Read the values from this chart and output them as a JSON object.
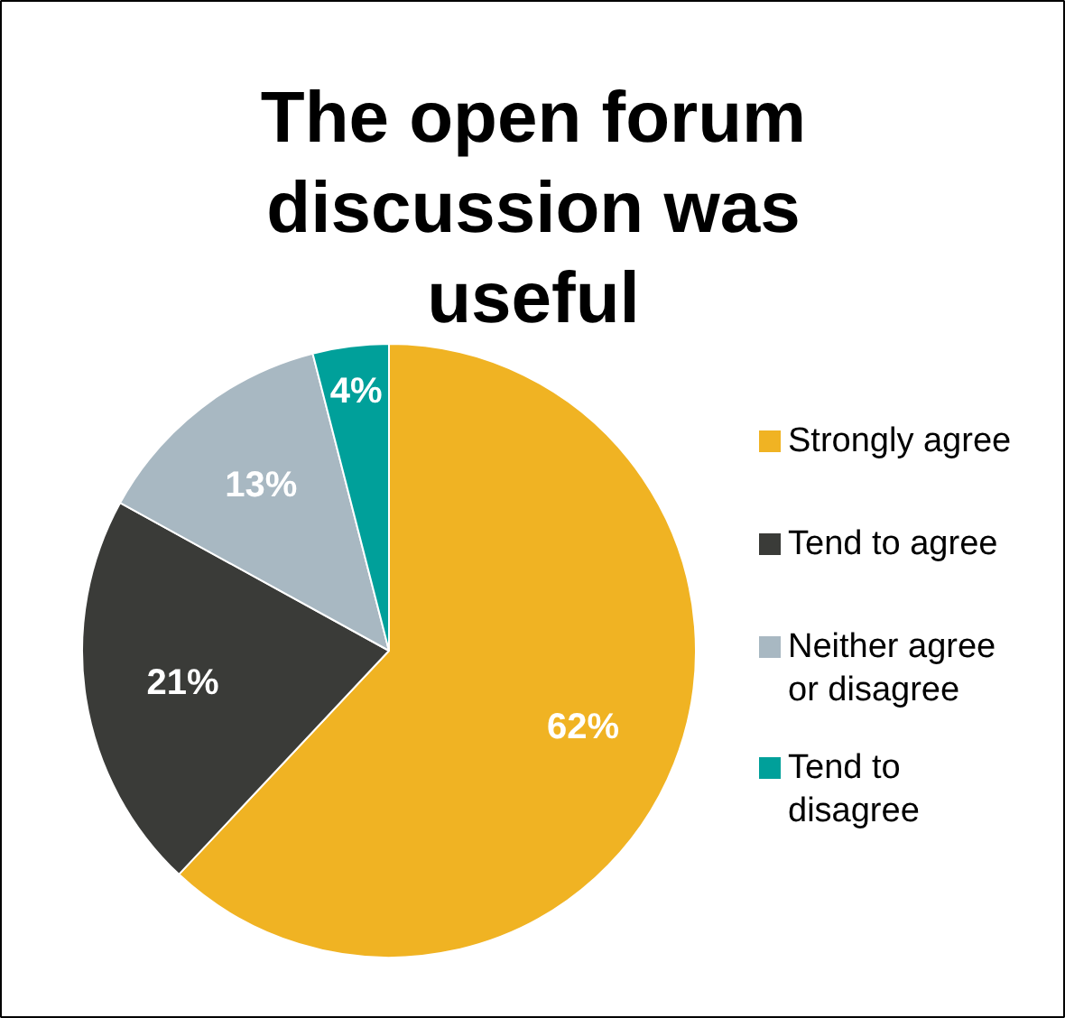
{
  "chart_data": {
    "type": "pie",
    "title": "The open forum discussion was useful",
    "categories": [
      "Strongly agree",
      "Tend to agree",
      "Neither agree or disagree",
      "Tend to disagree"
    ],
    "values": [
      62,
      21,
      13,
      4
    ],
    "colors": [
      "#f0b323",
      "#3a3b38",
      "#a8b8c2",
      "#00a09a"
    ],
    "value_labels": [
      "62%",
      "21%",
      "13%",
      "4%"
    ],
    "legend": "right"
  }
}
